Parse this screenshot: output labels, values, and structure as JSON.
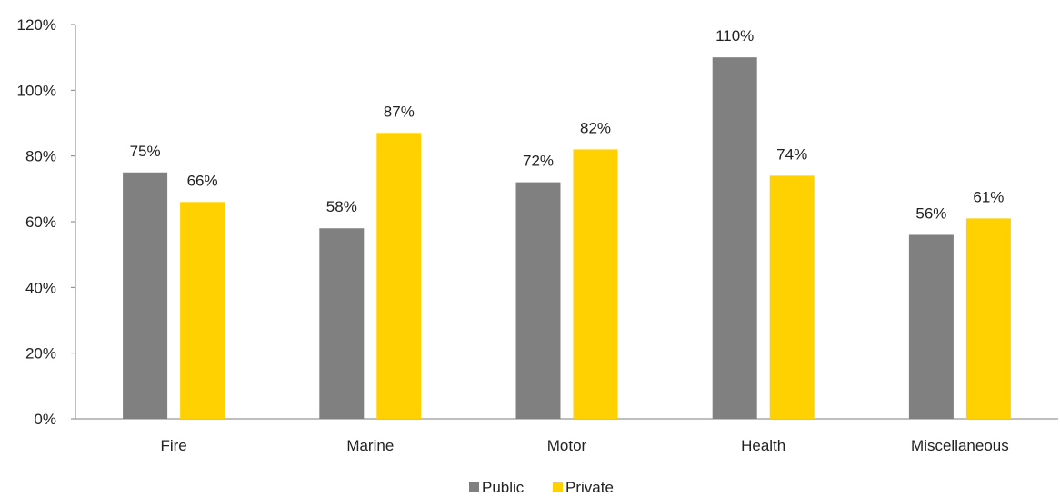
{
  "chart_data": {
    "type": "bar",
    "title": "",
    "xlabel": "",
    "ylabel": "",
    "categories": [
      "Fire",
      "Marine",
      "Motor",
      "Health",
      "Miscellaneous"
    ],
    "series": [
      {
        "name": "Public",
        "values": [
          75,
          58,
          72,
          110,
          56
        ],
        "labels": [
          "75%",
          "58%",
          "72%",
          "110%",
          "56%"
        ]
      },
      {
        "name": "Private",
        "values": [
          66,
          87,
          82,
          74,
          61
        ],
        "labels": [
          "66%",
          "87%",
          "82%",
          "74%",
          "61%"
        ]
      }
    ],
    "ylim": [
      0,
      120
    ],
    "yticks": [
      0,
      20,
      40,
      60,
      80,
      100,
      120
    ],
    "ytick_labels": [
      "0%",
      "20%",
      "40%",
      "60%",
      "80%",
      "100%",
      "120%"
    ],
    "grid": false,
    "legend": "bottom-center",
    "colors": {
      "Public": "#808080",
      "Private": "#FFD100",
      "axis": "#7f7f7f"
    }
  }
}
